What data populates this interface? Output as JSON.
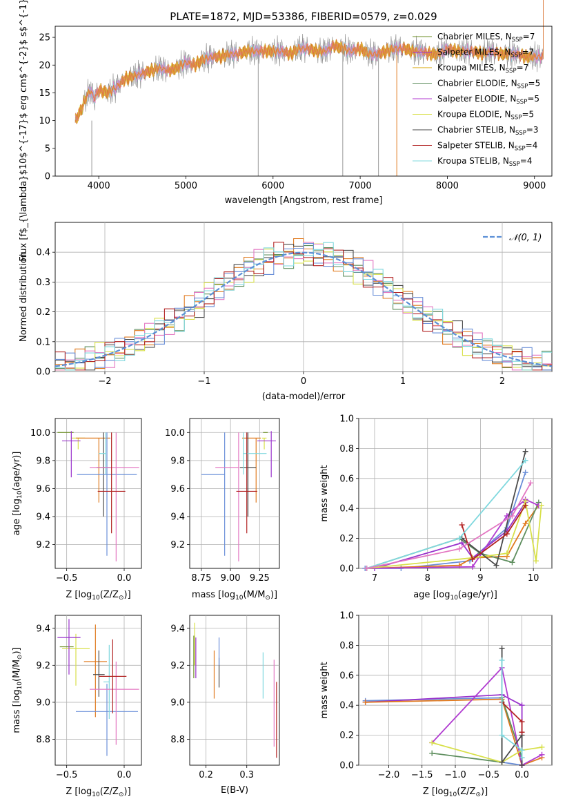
{
  "colors": {
    "series": [
      "#6b8e23",
      "#9932cc",
      "#d9a400",
      "#5f8f5f",
      "#b03ad0",
      "#d8e04a",
      "#4a4a4a",
      "#b22222",
      "#7fd8de"
    ],
    "spectrum": [
      "#888888",
      "#cc4a1a",
      "#7fd8de",
      "#d8e04a",
      "#e377c2",
      "#e07a1f"
    ],
    "hist": [
      "#5f8f5f",
      "#e07a1f",
      "#4a4a4a",
      "#d8e04a",
      "#e377c2",
      "#6a8fd8",
      "#b22222",
      "#7fd8de"
    ],
    "normal_line": "#5b8fd6",
    "errbar": [
      "#6b8e23",
      "#d8e04a",
      "#9932cc",
      "#e07a1f",
      "#4a4a4a",
      "#6a8fd8",
      "#7fd8de",
      "#e377c2",
      "#b22222"
    ]
  },
  "chart_data": [
    {
      "type": "line",
      "title": "PLATE=1872, MJD=53386, FIBERID=0579, z=0.029",
      "xlabel": "wavelength [Angstrom, rest frame]",
      "ylabel": "Flux [f$_{\\lambda}$10$^{-17}$ erg cm$^{-2}$ s$^{-1}$ A$^{-1}$]",
      "xlim": [
        3500,
        9200
      ],
      "ylim": [
        0,
        27
      ],
      "xticks": [
        4000,
        5000,
        6000,
        7000,
        8000,
        9000
      ],
      "yticks": [
        0,
        5,
        10,
        15,
        20,
        25
      ],
      "grid": false,
      "legend_position": "top-right",
      "legend": [
        {
          "main": "Chabrier MILES, N",
          "sub": "SSP",
          "tail": "=7"
        },
        {
          "main": "Salpeter MILES, N",
          "sub": "SSP",
          "tail": "=7"
        },
        {
          "main": "Kroupa MILES, N",
          "sub": "SSP",
          "tail": "=7"
        },
        {
          "main": "Chabrier ELODIE, N",
          "sub": "SSP",
          "tail": "=5"
        },
        {
          "main": "Salpeter ELODIE, N",
          "sub": "SSP",
          "tail": "=5"
        },
        {
          "main": "Kroupa ELODIE, N",
          "sub": "SSP",
          "tail": "=5"
        },
        {
          "main": "Chabrier STELIB, N",
          "sub": "SSP",
          "tail": "=3"
        },
        {
          "main": "Salpeter STELIB, N",
          "sub": "SSP",
          "tail": "=4"
        },
        {
          "main": "Kroupa STELIB, N",
          "sub": "SSP",
          "tail": "=4"
        }
      ],
      "spectrum_curve": {
        "x": [
          3730,
          3800,
          3850,
          3900,
          3950,
          4000,
          4100,
          4200,
          4300,
          4400,
          4500,
          4600,
          4700,
          4800,
          4900,
          5000,
          5100,
          5200,
          5300,
          5400,
          5500,
          5600,
          5700,
          5800,
          5900,
          6000,
          6100,
          6200,
          6300,
          6400,
          6500,
          6600,
          6700,
          6800,
          6900,
          7000,
          7100,
          7200,
          7300,
          7400,
          7500,
          7600,
          7700,
          7800,
          7900,
          8000,
          8100,
          8200,
          8300,
          8400,
          8500,
          8600,
          8700,
          8800,
          8900,
          9000,
          9100
        ],
        "y": [
          10,
          12,
          14,
          15.5,
          14,
          15.5,
          15,
          16,
          17.5,
          18,
          18.5,
          19,
          19.5,
          19,
          19.5,
          20.5,
          20,
          21,
          21.5,
          21.5,
          22,
          22,
          22.5,
          22.5,
          22.5,
          22.5,
          22.5,
          22,
          23,
          23,
          22.5,
          22.5,
          23.5,
          23,
          22.5,
          23,
          22,
          22,
          22.5,
          23,
          23,
          22.5,
          22.5,
          22,
          22,
          23,
          22.5,
          22.5,
          22.5,
          22,
          22.5,
          22,
          22,
          22,
          21.5,
          21.5,
          21.5
        ]
      }
    },
    {
      "type": "histogram",
      "xlabel": "(data-model)/error",
      "ylabel": "Normed distribution",
      "xlim": [
        -2.5,
        2.5
      ],
      "ylim": [
        0,
        0.5
      ],
      "xticks": [
        -2,
        -1,
        0,
        1,
        2
      ],
      "yticks": [
        0.0,
        0.1,
        0.2,
        0.3,
        0.4
      ],
      "grid": true,
      "bin_width": 0.1,
      "legend_position": "top-right",
      "legend_label": "𝒩(0, 1)",
      "normal_mean": 0,
      "normal_sigma": 1
    },
    {
      "type": "errorbar",
      "xlabel": "Z [log",
      "xlabel_sub": "10",
      "xlabel_tail": "(Z/Z",
      "xlabel_end": ")]",
      "ylabel": "age  [log",
      "ylabel_sub": "10",
      "ylabel_tail": "(age/yr)]",
      "xlim": [
        -0.6,
        0.15
      ],
      "ylim": [
        9.03,
        10.1
      ],
      "xticks": [
        -0.5,
        0.0
      ],
      "yticks": [
        9.2,
        9.4,
        9.6,
        9.8,
        10.0
      ],
      "grid": true,
      "points": [
        {
          "x": -0.52,
          "y": 10.0,
          "xerr": [
            0.06,
            0.08
          ],
          "yerr": [
            0.0,
            0.0
          ]
        },
        {
          "x": -0.4,
          "y": 9.96,
          "xerr": [
            0.06,
            0.06
          ],
          "yerr": [
            0.08,
            0.0
          ]
        },
        {
          "x": -0.46,
          "y": 9.94,
          "xerr": [
            0.08,
            0.08
          ],
          "yerr": [
            0.26,
            0.07
          ]
        },
        {
          "x": -0.22,
          "y": 9.96,
          "xerr": [
            0.2,
            0.1
          ],
          "yerr": [
            0.46,
            0.0
          ]
        },
        {
          "x": -0.18,
          "y": 9.75,
          "xerr": [
            0.06,
            0.06
          ],
          "yerr": [
            0.35,
            0.25
          ]
        },
        {
          "x": -0.15,
          "y": 9.7,
          "xerr": [
            0.26,
            0.26
          ],
          "yerr": [
            0.58,
            0.3
          ]
        },
        {
          "x": -0.16,
          "y": 9.85,
          "xerr": [
            0.06,
            0.0
          ],
          "yerr": [
            0.15,
            0.15
          ]
        },
        {
          "x": -0.07,
          "y": 9.75,
          "xerr": [
            0.23,
            0.2
          ],
          "yerr": [
            0.67,
            0.25
          ]
        },
        {
          "x": -0.11,
          "y": 9.58,
          "xerr": [
            0.12,
            0.12
          ],
          "yerr": [
            0.3,
            0.42
          ]
        }
      ]
    },
    {
      "type": "errorbar",
      "xlabel": "mass [log",
      "xlabel_sub": "10",
      "xlabel_tail": "(M/M",
      "xlabel_end": ")]",
      "ylabel": "",
      "xlim": [
        8.65,
        9.42
      ],
      "ylim": [
        9.03,
        10.1
      ],
      "xticks": [
        8.75,
        9.0,
        9.25
      ],
      "yticks": [
        9.2,
        9.4,
        9.6,
        9.8,
        10.0
      ],
      "grid": true,
      "points": [
        {
          "x": 9.3,
          "y": 10.0,
          "xerr": [
            0.02,
            0.02
          ],
          "yerr": [
            0.0,
            0.0
          ]
        },
        {
          "x": 9.29,
          "y": 9.96,
          "xerr": [
            0.02,
            0.02
          ],
          "yerr": [
            0.08,
            0.0
          ]
        },
        {
          "x": 9.35,
          "y": 9.94,
          "xerr": [
            0.12,
            0.04
          ],
          "yerr": [
            0.26,
            0.07
          ]
        },
        {
          "x": 9.22,
          "y": 9.96,
          "xerr": [
            0.12,
            0.04
          ],
          "yerr": [
            0.46,
            0.0
          ]
        },
        {
          "x": 9.15,
          "y": 9.75,
          "xerr": [
            0.07,
            0.07
          ],
          "yerr": [
            0.35,
            0.25
          ]
        },
        {
          "x": 8.95,
          "y": 9.7,
          "xerr": [
            0.2,
            0.0
          ],
          "yerr": [
            0.58,
            0.3
          ]
        },
        {
          "x": 9.11,
          "y": 9.85,
          "xerr": [
            0.0,
            0.2
          ],
          "yerr": [
            0.15,
            0.15
          ]
        },
        {
          "x": 9.07,
          "y": 9.75,
          "xerr": [
            0.2,
            0.0
          ],
          "yerr": [
            0.67,
            0.25
          ]
        },
        {
          "x": 9.14,
          "y": 9.58,
          "xerr": [
            0.09,
            0.09
          ],
          "yerr": [
            0.3,
            0.42
          ]
        }
      ]
    },
    {
      "type": "line",
      "xlabel": "age  [log",
      "xlabel_sub": "10",
      "xlabel_tail": "(age/yr)]",
      "ylabel": "mass weight",
      "xlim": [
        6.7,
        10.35
      ],
      "ylim": [
        0,
        1.0
      ],
      "xticks": [
        7,
        8,
        9,
        10
      ],
      "yticks": [
        0.0,
        0.2,
        0.4,
        0.6,
        0.8,
        1.0
      ],
      "grid": true,
      "series": [
        {
          "x": [
            6.82,
            7.5,
            8.8,
            9.5,
            9.85
          ],
          "y": [
            0.0,
            0.0,
            0.05,
            0.27,
            0.64
          ]
        },
        {
          "x": [
            7.0,
            8.65,
            8.85,
            9.5,
            9.85
          ],
          "y": [
            0.0,
            0.17,
            0.07,
            0.25,
            0.44
          ]
        },
        {
          "x": [
            6.85,
            8.6,
            8.85,
            9.5,
            9.85,
            10.1
          ],
          "y": [
            0.0,
            0.02,
            0.07,
            0.08,
            0.3,
            0.42
          ]
        },
        {
          "x": [
            6.85,
            8.6,
            9.0,
            9.6,
            10.1
          ],
          "y": [
            0.0,
            0.2,
            0.1,
            0.04,
            0.44
          ]
        },
        {
          "x": [
            6.85,
            8.85,
            9.5,
            9.85,
            10.1
          ],
          "y": [
            0.0,
            0.01,
            0.35,
            0.46,
            0.42
          ]
        },
        {
          "x": [
            6.85,
            8.85,
            9.5,
            9.85,
            10.05,
            10.15
          ],
          "y": [
            0.0,
            0.07,
            0.1,
            0.45,
            0.05,
            0.42
          ]
        },
        {
          "x": [
            8.65,
            9.3,
            9.85
          ],
          "y": [
            0.2,
            0.02,
            0.78
          ]
        },
        {
          "x": [
            8.65,
            8.85,
            9.5,
            9.85
          ],
          "y": [
            0.29,
            0.06,
            0.23,
            0.42
          ]
        },
        {
          "x": [
            6.85,
            8.6,
            9.85
          ],
          "y": [
            0.0,
            0.2,
            0.72
          ]
        },
        {
          "x": [
            6.85,
            8.6,
            9.6,
            9.95
          ],
          "y": [
            0.0,
            0.13,
            0.35,
            0.57
          ]
        }
      ]
    },
    {
      "type": "errorbar",
      "xlabel": "Z [log",
      "xlabel_sub": "10",
      "xlabel_tail": "(Z/Z",
      "xlabel_end": ")]",
      "ylabel": "mass [log",
      "ylabel_sub": "10",
      "ylabel_tail": "(M/M",
      "ylabel_end": ")]",
      "xlim": [
        -0.6,
        0.15
      ],
      "ylim": [
        8.66,
        9.47
      ],
      "xticks": [
        -0.5,
        0.0
      ],
      "yticks": [
        8.8,
        9.0,
        9.2,
        9.4
      ],
      "grid": true,
      "points": [
        {
          "x": -0.5,
          "y": 9.3,
          "xerr": [
            0.06,
            0.06
          ],
          "yerr": [
            0.0,
            0.0
          ]
        },
        {
          "x": -0.42,
          "y": 9.29,
          "xerr": [
            0.12,
            0.12
          ],
          "yerr": [
            0.2,
            0.08
          ]
        },
        {
          "x": -0.48,
          "y": 9.35,
          "xerr": [
            0.1,
            0.1
          ],
          "yerr": [
            0.2,
            0.1
          ]
        },
        {
          "x": -0.25,
          "y": 9.22,
          "xerr": [
            0.1,
            0.1
          ],
          "yerr": [
            0.3,
            0.2
          ]
        },
        {
          "x": -0.22,
          "y": 9.15,
          "xerr": [
            0.05,
            0.05
          ],
          "yerr": [
            0.12,
            0.13
          ]
        },
        {
          "x": -0.15,
          "y": 8.95,
          "xerr": [
            0.27,
            0.27
          ],
          "yerr": [
            0.24,
            0.15
          ]
        },
        {
          "x": -0.13,
          "y": 9.11,
          "xerr": [
            0.05,
            0.0
          ],
          "yerr": [
            0.2,
            0.2
          ]
        },
        {
          "x": -0.07,
          "y": 9.07,
          "xerr": [
            0.23,
            0.2
          ],
          "yerr": [
            0.3,
            0.15
          ]
        },
        {
          "x": -0.1,
          "y": 9.14,
          "xerr": [
            0.12,
            0.12
          ],
          "yerr": [
            0.2,
            0.2
          ]
        }
      ]
    },
    {
      "type": "errorbar",
      "xlabel": "E(B-V)",
      "ylabel": "",
      "xlim": [
        0.16,
        0.38
      ],
      "ylim": [
        8.66,
        9.47
      ],
      "xticks": [
        0.2,
        0.3
      ],
      "yticks": [
        8.8,
        9.0,
        9.2,
        9.4
      ],
      "grid": true,
      "points": [
        {
          "x": 0.17,
          "y": 9.28,
          "xerr": [
            0.0,
            0.0
          ],
          "yerr": [
            0.15,
            0.08
          ]
        },
        {
          "x": 0.172,
          "y": 9.3,
          "xerr": [
            0.0,
            0.0
          ],
          "yerr": [
            0.1,
            0.13
          ]
        },
        {
          "x": 0.175,
          "y": 9.25,
          "xerr": [
            0.0,
            0.0
          ],
          "yerr": [
            0.12,
            0.1
          ]
        },
        {
          "x": 0.22,
          "y": 9.15,
          "xerr": [
            0.0,
            0.0
          ],
          "yerr": [
            0.13,
            0.13
          ]
        },
        {
          "x": 0.232,
          "y": 9.16,
          "xerr": [
            0.0,
            0.0
          ],
          "yerr": [
            0.08,
            0.08
          ]
        },
        {
          "x": 0.232,
          "y": 9.27,
          "xerr": [
            0.0,
            0.0
          ],
          "yerr": [
            0.07,
            0.08
          ]
        },
        {
          "x": 0.34,
          "y": 9.15,
          "xerr": [
            0.0,
            0.0
          ],
          "yerr": [
            0.13,
            0.12
          ]
        },
        {
          "x": 0.367,
          "y": 9.0,
          "xerr": [
            0.0,
            0.0
          ],
          "yerr": [
            0.24,
            0.23
          ]
        },
        {
          "x": 0.373,
          "y": 8.96,
          "xerr": [
            0.0,
            0.0
          ],
          "yerr": [
            0.26,
            0.15
          ]
        }
      ]
    },
    {
      "type": "line",
      "xlabel": "Z [log",
      "xlabel_sub": "10",
      "xlabel_tail": "(Z/Z",
      "xlabel_end": ")]",
      "ylabel": "mass weight",
      "xlim": [
        -2.45,
        0.45
      ],
      "ylim": [
        0,
        1.0
      ],
      "xticks": [
        -2.0,
        -1.5,
        -1.0,
        -0.5,
        0.0
      ],
      "yticks": [
        0.0,
        0.2,
        0.4,
        0.6,
        0.8,
        1.0
      ],
      "grid": true,
      "series": [
        {
          "x": [
            -2.35,
            -0.3,
            -0.3,
            0.0
          ],
          "y": [
            0.43,
            0.45,
            0.02,
            0.0
          ]
        },
        {
          "x": [
            -2.35,
            -0.3,
            0.0,
            0.0
          ],
          "y": [
            0.42,
            0.47,
            0.4,
            0.05
          ]
        },
        {
          "x": [
            -2.35,
            -0.3,
            0.0,
            0.3
          ],
          "y": [
            0.42,
            0.44,
            0.0,
            0.05
          ]
        },
        {
          "x": [
            -1.35,
            -0.3,
            -0.3,
            0.0
          ],
          "y": [
            0.08,
            0.02,
            0.45,
            0.05
          ]
        },
        {
          "x": [
            -1.35,
            -0.3,
            0.0,
            0.3
          ],
          "y": [
            0.15,
            0.65,
            0.0,
            0.07
          ]
        },
        {
          "x": [
            -1.35,
            -0.3,
            0.0,
            0.3
          ],
          "y": [
            0.15,
            0.02,
            0.1,
            0.12
          ]
        },
        {
          "x": [
            -0.3,
            -0.3,
            0.0,
            0.0
          ],
          "y": [
            0.78,
            0.02,
            0.2,
            0.0
          ]
        },
        {
          "x": [
            -0.3,
            0.0,
            0.0
          ],
          "y": [
            0.42,
            0.29,
            0.22
          ]
        },
        {
          "x": [
            -0.3,
            -0.3,
            0.0,
            0.0
          ],
          "y": [
            0.7,
            0.2,
            0.1,
            0.05
          ]
        }
      ]
    }
  ]
}
